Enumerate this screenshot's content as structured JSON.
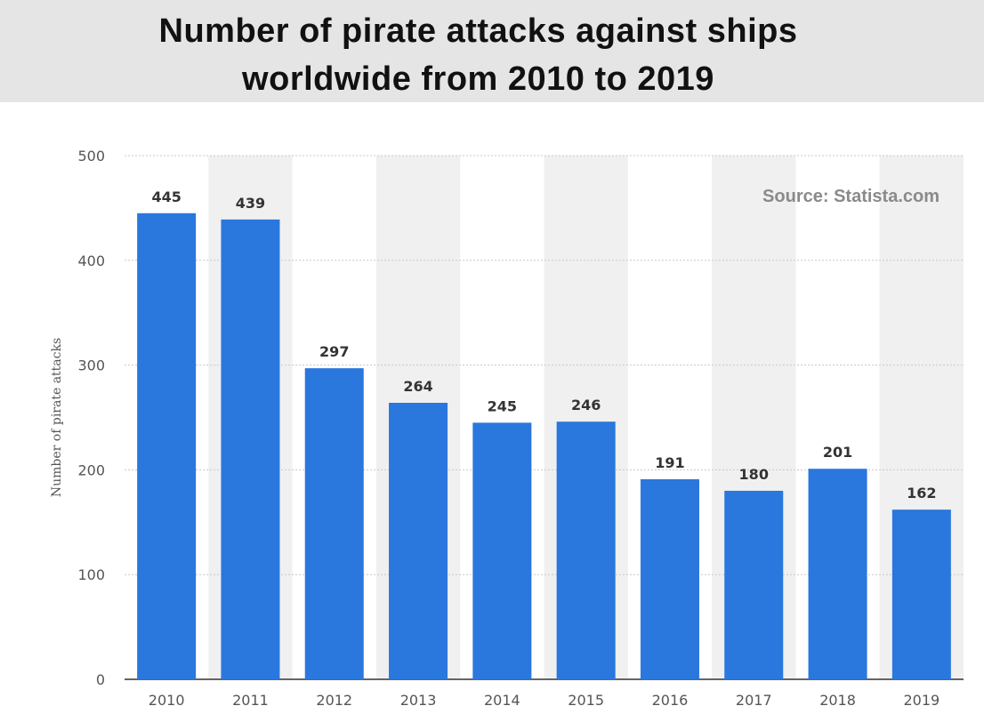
{
  "title_lines": [
    "Number of pirate attacks against ships",
    "worldwide from 2010 to 2019"
  ],
  "source_note": "Source: Statista.com",
  "colors": {
    "bar": "#2a77dd",
    "grid": "#c8c8c8",
    "band": "#f0f0f0",
    "header_bg": "#e6e5e5"
  },
  "chart_data": {
    "type": "bar",
    "title": "Number of pirate attacks against ships worldwide from 2010 to 2019",
    "xlabel": "",
    "ylabel": "Number of pirate attacks",
    "categories": [
      "2010",
      "2011",
      "2012",
      "2013",
      "2014",
      "2015",
      "2016",
      "2017",
      "2018",
      "2019"
    ],
    "values": [
      445,
      439,
      297,
      264,
      245,
      246,
      191,
      180,
      201,
      162
    ],
    "ylim": [
      0,
      500
    ],
    "yticks": [
      0,
      100,
      200,
      300,
      400,
      500
    ],
    "grid": true,
    "data_labels": true
  }
}
